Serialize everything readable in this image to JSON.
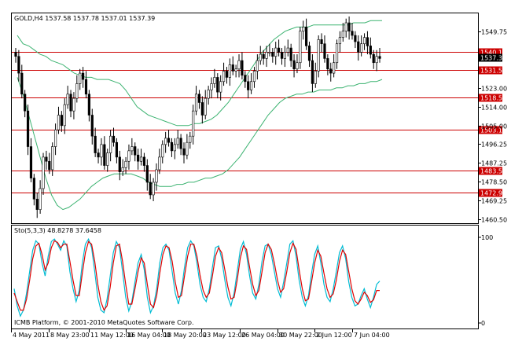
{
  "chart_data": [
    {
      "type": "candlestick",
      "title": "GOLD,H4  1537.58 1537.78 1537.01 1537.39",
      "ylim": [
        1458.5,
        1558.5
      ],
      "price_ticks": [
        "1549.75",
        "1523.00",
        "1514.00",
        "1505.00",
        "1496.25",
        "1487.25",
        "1478.50",
        "1469.25",
        "1460.50"
      ],
      "current_price": "1537.39",
      "x_labels": [
        "4 May 2011",
        "8 May 23:00",
        "11 May 12:00",
        "16 May 04:00",
        "18 May 20:00",
        "23 May 12:00",
        "26 May 04:00",
        "30 May 22:00",
        "2 Jun 12:00",
        "7 Jun 04:00"
      ],
      "horizontal_levels": [
        "1540.11",
        "1531.55",
        "1518.53",
        "1503.18",
        "1483.59",
        "1472.99"
      ],
      "level_color": "#cc0000",
      "bull_color": "#ffffff",
      "bear_color": "#000000",
      "band_color": "#3cb371",
      "closes": [
        1538,
        1530,
        1520,
        1512,
        1495,
        1480,
        1470,
        1465,
        1475,
        1490,
        1488,
        1484,
        1495,
        1503,
        1510,
        1505,
        1515,
        1520,
        1512,
        1518,
        1525,
        1530,
        1527,
        1520,
        1510,
        1500,
        1492,
        1490,
        1496,
        1486,
        1492,
        1500,
        1497,
        1490,
        1483,
        1485,
        1488,
        1493,
        1495,
        1491,
        1488,
        1490,
        1486,
        1478,
        1472,
        1478,
        1484,
        1490,
        1496,
        1499,
        1497,
        1493,
        1496,
        1499,
        1494,
        1491,
        1497,
        1500,
        1512,
        1520,
        1516,
        1510,
        1518,
        1522,
        1525,
        1528,
        1521,
        1526,
        1531,
        1528,
        1534,
        1531,
        1532,
        1536,
        1529,
        1526,
        1522,
        1526,
        1531,
        1536,
        1539,
        1537,
        1540,
        1540,
        1538,
        1542,
        1540,
        1537,
        1540,
        1542,
        1536,
        1532,
        1535,
        1550,
        1552,
        1543,
        1536,
        1525,
        1531,
        1546,
        1544,
        1537,
        1532,
        1530,
        1535,
        1544,
        1547,
        1550,
        1554,
        1550,
        1548,
        1545,
        1540,
        1544,
        1547,
        1543,
        1539,
        1535,
        1538,
        1537
      ],
      "upper_band": [
        1548,
        1544,
        1543,
        1541,
        1539,
        1538,
        1536,
        1535,
        1534,
        1532,
        1530,
        1529,
        1528,
        1528,
        1527,
        1527,
        1527,
        1526,
        1525,
        1522,
        1518,
        1514,
        1512,
        1510,
        1509,
        1508,
        1507,
        1506,
        1505,
        1505,
        1505,
        1506,
        1506,
        1507,
        1508,
        1510,
        1513,
        1516,
        1520,
        1524,
        1528,
        1532,
        1536,
        1540,
        1543,
        1546,
        1548,
        1550,
        1551,
        1552,
        1552,
        1552,
        1553,
        1553,
        1553,
        1553,
        1553,
        1553,
        1553,
        1554,
        1554,
        1554,
        1555,
        1555,
        1555
      ],
      "lower_band": [
        1528,
        1520,
        1510,
        1500,
        1490,
        1480,
        1472,
        1467,
        1465,
        1466,
        1468,
        1470,
        1473,
        1476,
        1478,
        1480,
        1481,
        1482,
        1482,
        1482,
        1482,
        1481,
        1480,
        1478,
        1477,
        1476,
        1476,
        1476,
        1477,
        1477,
        1478,
        1478,
        1479,
        1480,
        1480,
        1481,
        1482,
        1484,
        1487,
        1490,
        1494,
        1498,
        1502,
        1506,
        1510,
        1513,
        1516,
        1518,
        1519,
        1520,
        1520,
        1521,
        1521,
        1522,
        1522,
        1522,
        1523,
        1523,
        1524,
        1524,
        1525,
        1525,
        1526,
        1526,
        1527
      ]
    },
    {
      "type": "line",
      "title": "Sto(5,3,3) 48.8278 37.6458",
      "ylim": [
        0,
        100
      ],
      "y_ticks": [
        "100",
        "0"
      ],
      "series": [
        {
          "color": "#00bcd4",
          "values": [
            40,
            20,
            8,
            15,
            35,
            60,
            85,
            96,
            92,
            70,
            55,
            78,
            95,
            98,
            92,
            85,
            96,
            90,
            60,
            40,
            25,
            38,
            70,
            92,
            98,
            88,
            60,
            30,
            15,
            12,
            28,
            55,
            82,
            95,
            88,
            60,
            30,
            14,
            25,
            48,
            70,
            80,
            62,
            30,
            12,
            20,
            40,
            70,
            88,
            92,
            85,
            60,
            35,
            22,
            38,
            65,
            88,
            96,
            90,
            70,
            45,
            30,
            25,
            40,
            65,
            88,
            90,
            75,
            50,
            30,
            20,
            35,
            60,
            86,
            95,
            80,
            55,
            35,
            28,
            45,
            72,
            90,
            92,
            80,
            60,
            40,
            30,
            48,
            70,
            92,
            96,
            78,
            50,
            30,
            20,
            32,
            58,
            80,
            90,
            70,
            45,
            30,
            25,
            40,
            60,
            82,
            90,
            75,
            48,
            30,
            20,
            22,
            32,
            40,
            28,
            18,
            30,
            45,
            49
          ]
        },
        {
          "color": "#e00000",
          "values": [
            35,
            25,
            15,
            15,
            28,
            50,
            75,
            90,
            93,
            80,
            62,
            70,
            88,
            96,
            94,
            88,
            92,
            92,
            72,
            50,
            32,
            32,
            58,
            82,
            95,
            92,
            72,
            45,
            25,
            15,
            20,
            42,
            70,
            90,
            92,
            72,
            45,
            22,
            22,
            40,
            60,
            76,
            70,
            45,
            22,
            18,
            32,
            58,
            80,
            90,
            88,
            72,
            48,
            30,
            32,
            55,
            78,
            92,
            92,
            78,
            56,
            38,
            30,
            35,
            55,
            78,
            88,
            82,
            62,
            42,
            28,
            30,
            50,
            76,
            90,
            86,
            65,
            45,
            32,
            38,
            60,
            82,
            92,
            86,
            70,
            50,
            36,
            40,
            60,
            82,
            93,
            86,
            62,
            40,
            26,
            28,
            48,
            70,
            85,
            78,
            58,
            40,
            30,
            34,
            50,
            72,
            85,
            80,
            60,
            40,
            26,
            22,
            28,
            36,
            32,
            24,
            27,
            38,
            38
          ]
        }
      ]
    }
  ],
  "footer": "ICMB Platform, © 2001-2010 MetaQuotes Software Corp.",
  "colors": {
    "frame": "#000000",
    "grid": "#c0c0c0"
  }
}
